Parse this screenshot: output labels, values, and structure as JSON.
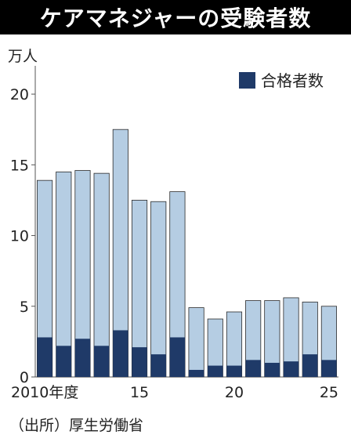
{
  "title": "ケアマネジャーの受験者数",
  "unit": "万人",
  "source": "（出所）厚生労働省",
  "colors": {
    "examinees": "#b5cde3",
    "passers": "#1f3a68",
    "axis": "#555555",
    "title_bg": "#000000"
  },
  "chart_data": {
    "type": "bar",
    "stacked": true,
    "title": "ケアマネジャーの受験者数",
    "ylabel": "万人",
    "xlabel": "",
    "ylim": [
      0,
      22
    ],
    "yticks": [
      0,
      5,
      10,
      15,
      20
    ],
    "legend_position": "top-right",
    "categories": [
      "2010",
      "2011",
      "2012",
      "2013",
      "2014",
      "2015",
      "2016",
      "2017",
      "2018",
      "2019",
      "2020",
      "2021",
      "2022",
      "2023",
      "2024",
      "2025"
    ],
    "xtick_labels": [
      {
        "category": "2010",
        "text": "2010年度"
      },
      {
        "category": "2015",
        "text": "15"
      },
      {
        "category": "2020",
        "text": "20"
      },
      {
        "category": "2025",
        "text": "25"
      }
    ],
    "series": [
      {
        "name": "受験者数",
        "values": [
          13.9,
          14.5,
          14.6,
          14.4,
          17.5,
          12.5,
          12.4,
          13.1,
          4.9,
          4.1,
          4.6,
          5.4,
          5.4,
          5.6,
          5.3,
          5.0
        ]
      },
      {
        "name": "合格者数",
        "values": [
          2.8,
          2.2,
          2.7,
          2.2,
          3.3,
          2.1,
          1.6,
          2.8,
          0.5,
          0.8,
          0.8,
          1.2,
          1.0,
          1.1,
          1.6,
          1.2
        ]
      }
    ],
    "legend": [
      {
        "label": "合格者数",
        "series": "合格者数"
      }
    ]
  }
}
